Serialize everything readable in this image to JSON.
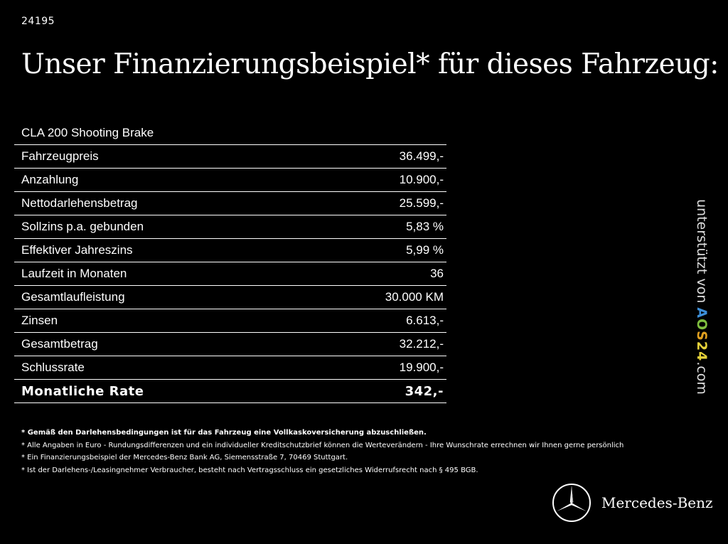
{
  "code": "24195",
  "headline": "Unser Finanzierungsbeispiel* für dieses Fahrzeug:",
  "model": "CLA 200 Shooting Brake",
  "rows": [
    {
      "label": "Fahrzeugpreis",
      "value": "36.499,-"
    },
    {
      "label": "Anzahlung",
      "value": "10.900,-"
    },
    {
      "label": "Nettodarlehensbetrag",
      "value": "25.599,-"
    },
    {
      "label": "Sollzins p.a. gebunden",
      "value": "5,83 %"
    },
    {
      "label": "Effektiver Jahreszins",
      "value": "5,99 %"
    },
    {
      "label": "Laufzeit in Monaten",
      "value": "36"
    },
    {
      "label": "Gesamtlaufleistung",
      "value": "30.000 KM"
    },
    {
      "label": "Zinsen",
      "value": "6.613,-"
    },
    {
      "label": "Gesamtbetrag",
      "value": "32.212,-"
    },
    {
      "label": "Schlussrate",
      "value": "19.900,-"
    }
  ],
  "total": {
    "label": "Monatliche Rate",
    "value": "342,-"
  },
  "notes": [
    "* Gemäß den Darlehensbedingungen ist für das Fahrzeug eine Vollkaskoversicherung abzuschließen.",
    "* Alle Angaben in Euro - Rundungsdifferenzen und ein individueller Kreditschutzbrief können die Werteverändern - Ihre Wunschrate errechnen wir Ihnen gerne persönlich",
    "* Ein Finanzierungsbeispiel der Mercedes-Benz Bank AG, Siemensstraße 7, 70469 Stuttgart.",
    "* Ist der Darlehens-/Leasingnehmer Verbraucher, besteht nach Vertragsschluss ein gesetzliches Widerrufsrecht nach § 495 BGB."
  ],
  "side": {
    "prefix": "unterstützt von",
    "brand_parts": [
      "A",
      "O",
      "S",
      "24"
    ],
    "suffix": ".com"
  },
  "logo": {
    "wordmark": "Mercedes-Benz",
    "icon": "mercedes-star-icon"
  },
  "colors": {
    "background": "#000000",
    "text": "#ffffff"
  }
}
